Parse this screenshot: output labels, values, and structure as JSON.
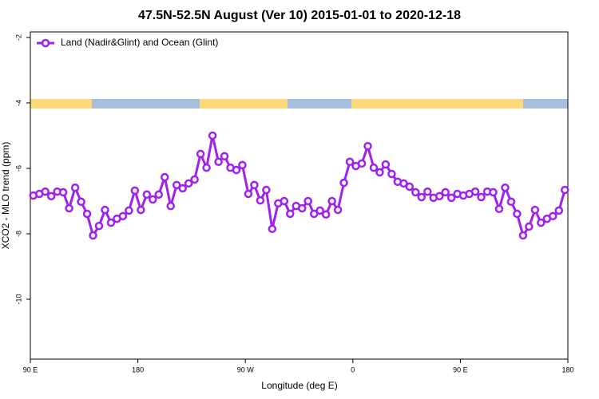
{
  "chart_data": {
    "type": "line",
    "title": "47.5N-52.5N August (Ver 10)   2015-01-01 to 2020-12-18",
    "x_label": "Longitude (deg E)",
    "y_label": "XCO2 - MLO trend (ppm)",
    "xlim": [
      90,
      540
    ],
    "ylim": [
      -11.83,
      -1.83
    ],
    "xticks": [
      {
        "value": 90,
        "label": "90 E"
      },
      {
        "value": 180,
        "label": "180"
      },
      {
        "value": 270,
        "label": "90 W"
      },
      {
        "value": 360,
        "label": "0"
      },
      {
        "value": 450,
        "label": "90 E"
      },
      {
        "value": 540,
        "label": "180"
      }
    ],
    "yticks": [
      -2,
      -4,
      -6,
      -8,
      -10
    ],
    "legend_position": "top-left",
    "x": [
      92.5,
      97.5,
      102.5,
      107.5,
      112.5,
      117.5,
      122.5,
      127.5,
      132.5,
      137.5,
      142.5,
      147.5,
      152.5,
      157.5,
      162.5,
      167.5,
      172.5,
      177.5,
      182.5,
      187.5,
      192.5,
      197.5,
      202.5,
      207.5,
      212.5,
      217.5,
      222.5,
      227.5,
      232.5,
      237.5,
      242.5,
      247.5,
      252.5,
      257.5,
      262.5,
      267.5,
      272.5,
      277.5,
      282.5,
      287.5,
      292.5,
      297.5,
      302.5,
      307.5,
      312.5,
      317.5,
      322.5,
      327.5,
      332.5,
      337.5,
      342.5,
      347.5,
      352.5,
      357.5,
      362.5,
      367.5,
      372.5,
      377.5,
      382.5,
      387.5,
      392.5,
      397.5,
      402.5,
      407.5,
      412.5,
      417.5,
      422.5,
      427.5,
      432.5,
      437.5,
      442.5,
      447.5,
      452.5,
      457.5,
      462.5,
      467.5,
      472.5,
      477.5,
      482.5,
      487.5,
      492.5,
      497.5,
      502.5,
      507.5,
      512.5,
      517.5,
      522.5,
      527.5,
      532.5,
      537.5
    ],
    "series": [
      {
        "name": "Land (Nadir&Glint) and Ocean (Glint)",
        "color": "#a020f0",
        "values": [
          -6.83,
          -6.78,
          -6.71,
          -6.85,
          -6.71,
          -6.73,
          -7.22,
          -6.59,
          -7.02,
          -7.39,
          -8.05,
          -7.76,
          -7.27,
          -7.66,
          -7.54,
          -7.46,
          -7.29,
          -6.68,
          -7.27,
          -6.8,
          -6.95,
          -6.8,
          -6.27,
          -7.15,
          -6.51,
          -6.61,
          -6.46,
          -6.34,
          -5.56,
          -5.98,
          -5.0,
          -5.8,
          -5.63,
          -5.98,
          -6.05,
          -5.9,
          -6.78,
          -6.51,
          -6.98,
          -6.66,
          -7.85,
          -7.07,
          -7.0,
          -7.39,
          -7.15,
          -7.22,
          -7.0,
          -7.39,
          -7.29,
          -7.41,
          -7.0,
          -7.27,
          -6.44,
          -5.8,
          -5.93,
          -5.85,
          -5.32,
          -5.98,
          -6.12,
          -5.88,
          -6.17,
          -6.41,
          -6.46,
          -6.56,
          -6.73,
          -6.88,
          -6.71,
          -6.9,
          -6.85,
          -6.73,
          -6.9,
          -6.78,
          -6.83,
          -6.78,
          -6.71,
          -6.88,
          -6.71,
          -6.73,
          -7.24,
          -6.59,
          -7.02,
          -7.39,
          -8.05,
          -7.78,
          -7.27,
          -7.66,
          -7.54,
          -7.46,
          -7.29,
          -6.66
        ]
      }
    ]
  }
}
